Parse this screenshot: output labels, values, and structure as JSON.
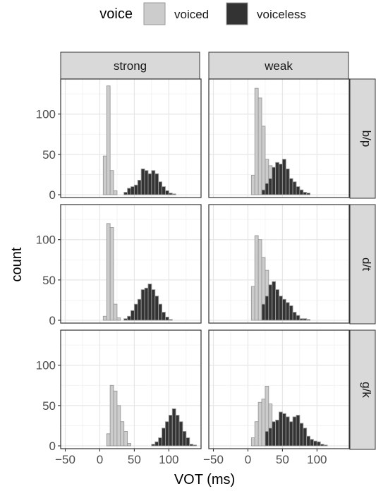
{
  "chart_data": {
    "type": "bar",
    "subtype": "faceted-histogram",
    "title": "",
    "xlabel": "VOT (ms)",
    "ylabel": "count",
    "xlim": [
      -50,
      140
    ],
    "ylim": [
      0,
      140
    ],
    "x_ticks": [
      -50,
      0,
      50,
      100
    ],
    "x_tick_labels": [
      "−50",
      "0",
      "50",
      "100"
    ],
    "y_ticks": [
      0,
      50,
      100
    ],
    "y_tick_labels": [
      "0",
      "50",
      "100"
    ],
    "grid": true,
    "bin_width": 5,
    "legend": {
      "title": "voice",
      "placement": "top",
      "entries": [
        {
          "label": "voiced",
          "color": "#cccccc"
        },
        {
          "label": "voiceless",
          "color": "#333333"
        }
      ]
    },
    "columns": [
      "strong",
      "weak"
    ],
    "rows": [
      "b/p",
      "d/t",
      "g/k"
    ],
    "bins_x_start": -45,
    "panels": [
      {
        "row": "b/p",
        "col": "strong",
        "series": [
          {
            "name": "voiced",
            "values": [
              0,
              0,
              0,
              0,
              0,
              0,
              0,
              0,
              0,
              0,
              48,
              135,
              30,
              5,
              0,
              0,
              0,
              0,
              0,
              0,
              0,
              0,
              0,
              0,
              0,
              0,
              0,
              0,
              0,
              0,
              0,
              0,
              0,
              0,
              0,
              0,
              0
            ]
          },
          {
            "name": "voiceless",
            "values": [
              0,
              0,
              0,
              0,
              0,
              0,
              0,
              0,
              0,
              0,
              0,
              0,
              0,
              0,
              0,
              0,
              3,
              8,
              10,
              12,
              18,
              32,
              30,
              26,
              30,
              26,
              16,
              10,
              5,
              2,
              1,
              0,
              0,
              0,
              0,
              0,
              0
            ]
          }
        ]
      },
      {
        "row": "b/p",
        "col": "weak",
        "series": [
          {
            "name": "voiced",
            "values": [
              0,
              0,
              0,
              0,
              0,
              0,
              0,
              0,
              0,
              0,
              24,
              132,
              120,
              85,
              44,
              36,
              8,
              2,
              0,
              0,
              0,
              0,
              0,
              0,
              0,
              0,
              0,
              0,
              0,
              0,
              0,
              0,
              0,
              0,
              0,
              0,
              0
            ]
          },
          {
            "name": "voiceless",
            "values": [
              0,
              0,
              0,
              0,
              0,
              0,
              0,
              0,
              0,
              0,
              0,
              0,
              0,
              6,
              14,
              20,
              34,
              40,
              38,
              44,
              32,
              20,
              16,
              10,
              6,
              3,
              2,
              0,
              0,
              0,
              0,
              0,
              0,
              0,
              0,
              0,
              0
            ]
          }
        ]
      },
      {
        "row": "d/t",
        "col": "strong",
        "series": [
          {
            "name": "voiced",
            "values": [
              0,
              0,
              0,
              0,
              0,
              0,
              0,
              0,
              0,
              0,
              5,
              120,
              115,
              20,
              3,
              0,
              0,
              0,
              0,
              0,
              0,
              0,
              0,
              0,
              0,
              0,
              0,
              0,
              0,
              0,
              0,
              0,
              0,
              0,
              0,
              0,
              0
            ]
          },
          {
            "name": "voiceless",
            "values": [
              0,
              0,
              0,
              0,
              0,
              0,
              0,
              0,
              0,
              0,
              0,
              0,
              0,
              0,
              0,
              0,
              2,
              5,
              12,
              20,
              26,
              38,
              40,
              45,
              38,
              30,
              20,
              10,
              4,
              1,
              0,
              0,
              0,
              0,
              0,
              0,
              0
            ]
          }
        ]
      },
      {
        "row": "d/t",
        "col": "weak",
        "series": [
          {
            "name": "voiced",
            "values": [
              0,
              0,
              0,
              0,
              0,
              0,
              0,
              0,
              0,
              0,
              42,
              105,
              100,
              78,
              62,
              32,
              10,
              3,
              0,
              0,
              0,
              0,
              0,
              0,
              0,
              0,
              0,
              0,
              0,
              0,
              0,
              0,
              0,
              0,
              0,
              0,
              0
            ]
          },
          {
            "name": "voiceless",
            "values": [
              0,
              0,
              0,
              0,
              0,
              0,
              0,
              0,
              0,
              0,
              0,
              0,
              0,
              20,
              30,
              44,
              48,
              38,
              30,
              26,
              22,
              18,
              10,
              6,
              2,
              2,
              1,
              0,
              0,
              0,
              0,
              0,
              0,
              0,
              0,
              0,
              0
            ]
          }
        ]
      },
      {
        "row": "g/k",
        "col": "strong",
        "series": [
          {
            "name": "voiced",
            "values": [
              0,
              0,
              0,
              0,
              0,
              0,
              0,
              0,
              0,
              0,
              0,
              15,
              75,
              68,
              50,
              30,
              18,
              3,
              0,
              0,
              0,
              0,
              0,
              0,
              0,
              0,
              0,
              0,
              0,
              0,
              0,
              0,
              0,
              0,
              0,
              0,
              0
            ]
          },
          {
            "name": "voiceless",
            "values": [
              0,
              0,
              0,
              0,
              0,
              0,
              0,
              0,
              0,
              0,
              0,
              0,
              0,
              0,
              0,
              0,
              0,
              0,
              0,
              0,
              0,
              0,
              0,
              0,
              2,
              5,
              10,
              22,
              30,
              38,
              46,
              38,
              30,
              18,
              10,
              2,
              1
            ]
          }
        ]
      },
      {
        "row": "g/k",
        "col": "weak",
        "series": [
          {
            "name": "voiced",
            "values": [
              0,
              0,
              0,
              0,
              0,
              0,
              0,
              0,
              0,
              0,
              10,
              30,
              54,
              58,
              74,
              52,
              22,
              12,
              8,
              3,
              0,
              0,
              0,
              0,
              0,
              0,
              0,
              0,
              0,
              0,
              0,
              0,
              0,
              0,
              0,
              0,
              0
            ]
          },
          {
            "name": "voiceless",
            "values": [
              0,
              0,
              0,
              0,
              0,
              0,
              0,
              0,
              0,
              0,
              0,
              0,
              0,
              0,
              18,
              22,
              30,
              32,
              42,
              40,
              36,
              30,
              36,
              38,
              28,
              22,
              12,
              8,
              6,
              5,
              2,
              1,
              0,
              0,
              0,
              0,
              0
            ]
          }
        ]
      }
    ]
  }
}
